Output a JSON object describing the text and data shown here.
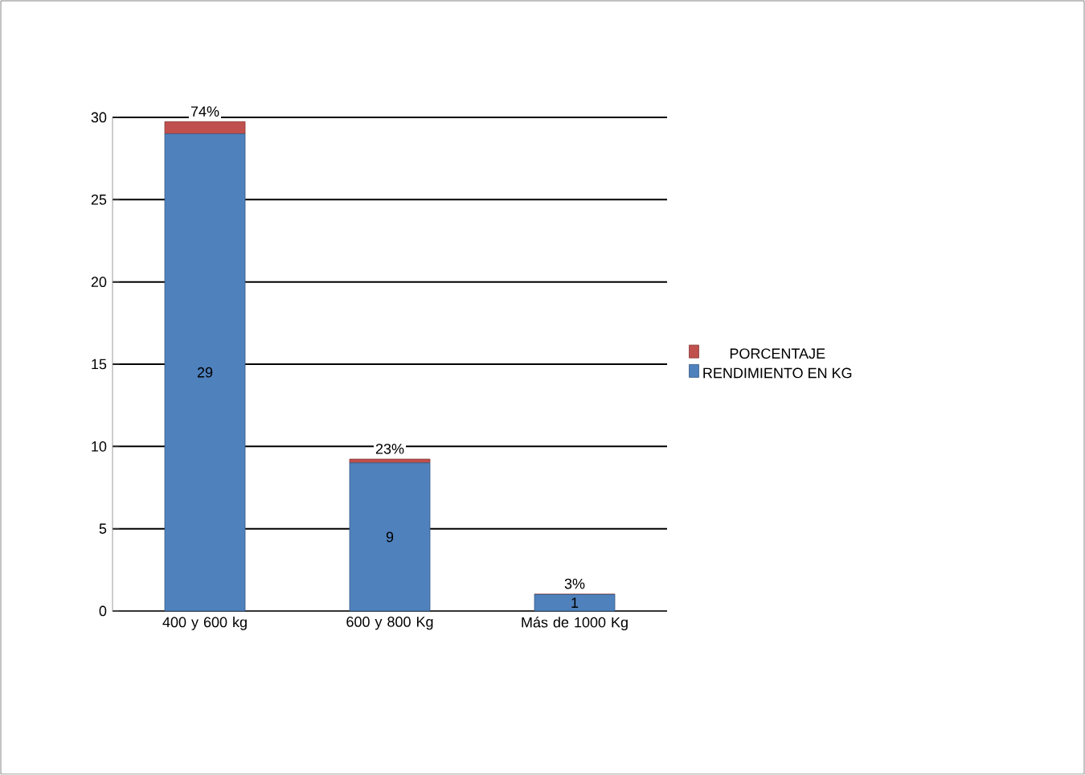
{
  "chart_data": {
    "type": "bar",
    "stacked": true,
    "categories": [
      "400 y 600 kg",
      "600 y 800 Kg",
      "Más de 1000 Kg"
    ],
    "series": [
      {
        "name": "RENDIMIENTO  EN KG",
        "color": "#4f81bd",
        "values": [
          29,
          9,
          1
        ],
        "value_labels": [
          "29",
          "9",
          "1"
        ]
      },
      {
        "name": "PORCENTAJE",
        "color": "#c0504d",
        "values": [
          0.74,
          0.23,
          0.03
        ],
        "value_labels": [
          "74%",
          "23%",
          "3%"
        ]
      }
    ],
    "ylim": [
      0,
      30
    ],
    "yticks": [
      0,
      5,
      10,
      15,
      20,
      25,
      30
    ],
    "grid": "y",
    "legend": "right"
  }
}
